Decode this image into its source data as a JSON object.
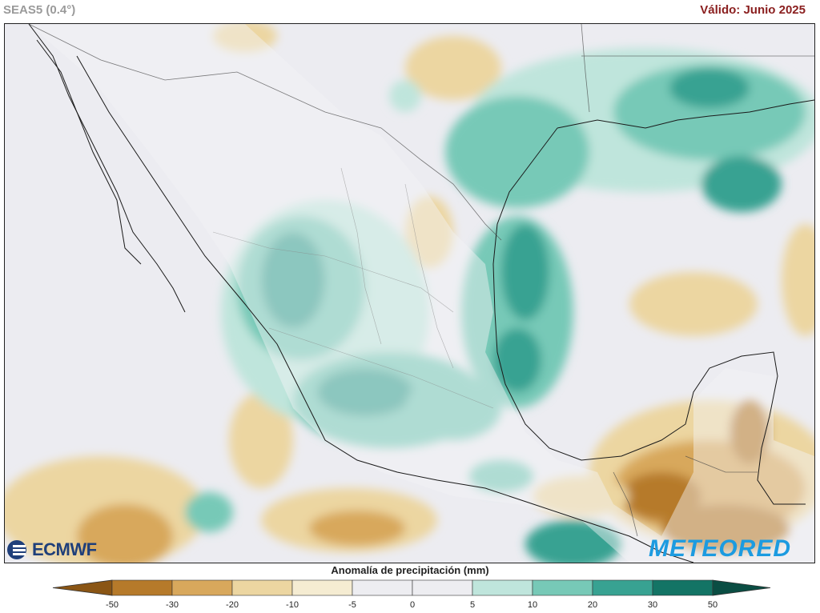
{
  "header": {
    "model": "SEAS5 (0.4°)",
    "valid": "Válido: Junio 2025"
  },
  "legend": {
    "title": "Anomalía de precipitación (mm)",
    "ticks": [
      "-50",
      "-30",
      "-20",
      "-10",
      "-5",
      "0",
      "5",
      "10",
      "20",
      "30",
      "50"
    ],
    "colors": [
      "#8a5514",
      "#b67a2a",
      "#d8a85c",
      "#ecd6a1",
      "#f5ecd2",
      "#ededf1",
      "#ededf1",
      "#bfe5dc",
      "#77c9b7",
      "#38a292",
      "#137465",
      "#0a4d43"
    ]
  },
  "logos": {
    "left": "ECMWF",
    "right": "METEORED"
  },
  "map": {
    "region": "Mexico and surroundings",
    "variable": "precipitation anomaly"
  }
}
